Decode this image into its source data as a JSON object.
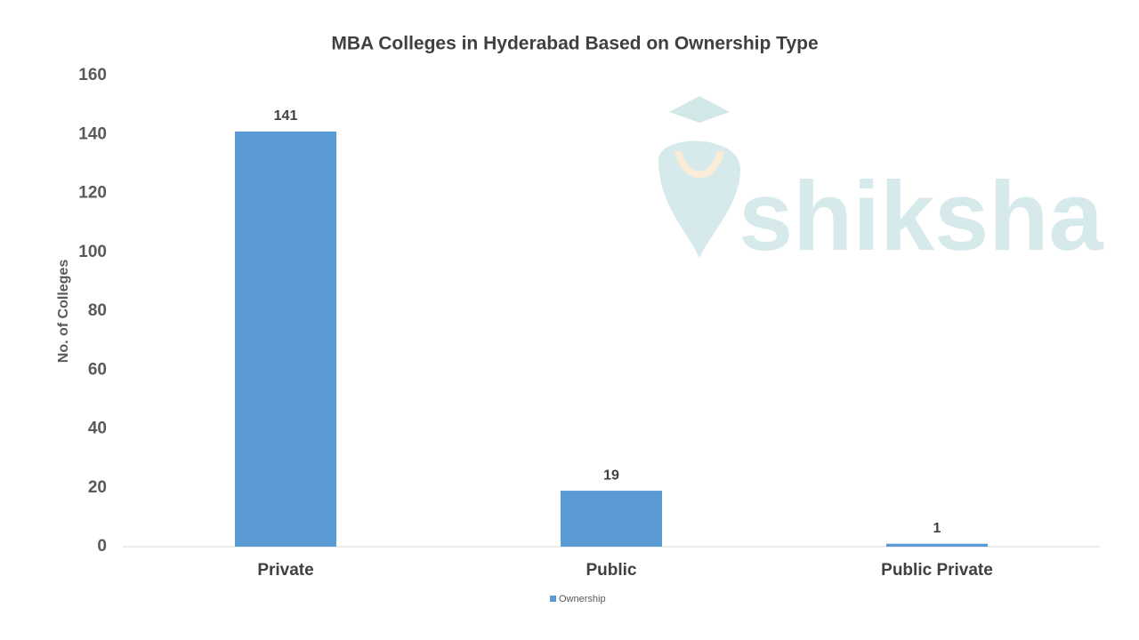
{
  "chart_data": {
    "type": "bar",
    "title": "MBA Colleges in Hyderabad Based on Ownership Type",
    "y_label": "No. of Colleges",
    "categories": [
      "Private",
      "Public",
      "Public Private"
    ],
    "series": [
      {
        "name": "Ownership",
        "color": "#5b9bd5",
        "values": [
          141,
          19,
          1
        ]
      }
    ],
    "ylim": [
      0,
      160
    ],
    "yticks": [
      0,
      20,
      40,
      60,
      80,
      100,
      120,
      140,
      160
    ],
    "grid": false,
    "legend": "bottom",
    "watermark": "shiksha"
  }
}
